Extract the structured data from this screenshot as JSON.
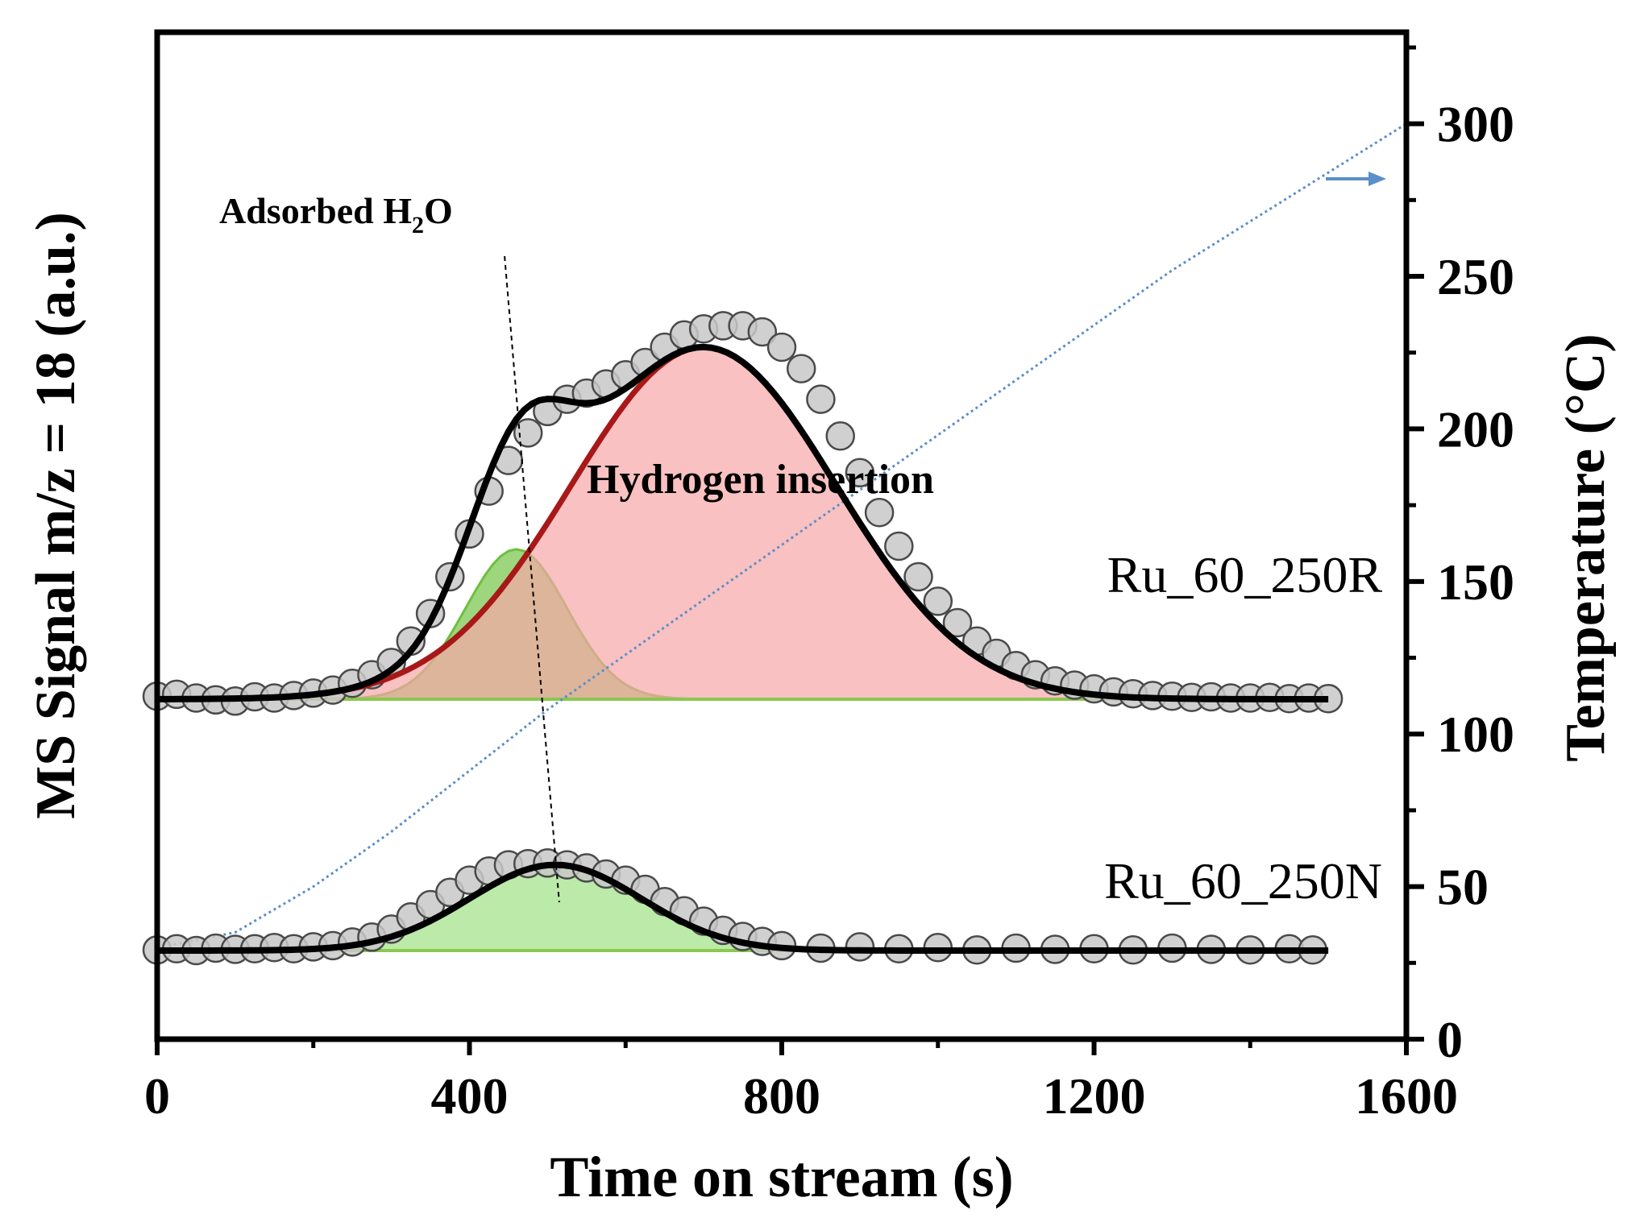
{
  "chart_data": {
    "type": "scatter",
    "xlabel": "Time on stream (s)",
    "ylabel": "MS Signal m/z = 18 (a.u.)",
    "y2label": "Temperature (°C)",
    "xlim": [
      0,
      1600
    ],
    "y2lim": [
      0,
      330
    ],
    "xticks": [
      0,
      400,
      800,
      1200,
      1600
    ],
    "y2ticks": [
      0,
      50,
      100,
      150,
      200,
      250,
      300
    ],
    "grid": false,
    "signal_units": "a.u. (offset stack, arbitrary vertical scale 0-100)",
    "annotations": {
      "adsorbed_prefix": "Adsorbed H",
      "adsorbed_sub": "2",
      "adsorbed_suffix": "O",
      "hydrogen_insertion": "Hydrogen insertion",
      "temperature_arrow": "→ Temperature axis"
    },
    "samples": [
      {
        "name": "Ru_60_250R",
        "baseline": 0,
        "data": [
          [
            0,
            0.5
          ],
          [
            25,
            0.8
          ],
          [
            50,
            0.2
          ],
          [
            75,
            -0.1
          ],
          [
            100,
            -0.3
          ],
          [
            125,
            0.4
          ],
          [
            150,
            0.2
          ],
          [
            175,
            0.6
          ],
          [
            200,
            1.0
          ],
          [
            225,
            1.5
          ],
          [
            250,
            2.6
          ],
          [
            275,
            4.0
          ],
          [
            300,
            6.0
          ],
          [
            325,
            9.5
          ],
          [
            350,
            14.0
          ],
          [
            375,
            20.0
          ],
          [
            400,
            27.0
          ],
          [
            425,
            34.0
          ],
          [
            450,
            39.0
          ],
          [
            475,
            43.5
          ],
          [
            500,
            47.0
          ],
          [
            525,
            49.0
          ],
          [
            550,
            50.0
          ],
          [
            575,
            51.5
          ],
          [
            600,
            53.0
          ],
          [
            625,
            55.0
          ],
          [
            650,
            57.5
          ],
          [
            675,
            59.5
          ],
          [
            700,
            60.5
          ],
          [
            725,
            61.0
          ],
          [
            750,
            61.0
          ],
          [
            775,
            60.0
          ],
          [
            800,
            57.5
          ],
          [
            825,
            54.0
          ],
          [
            850,
            49.0
          ],
          [
            875,
            43.0
          ],
          [
            900,
            37.0
          ],
          [
            925,
            30.5
          ],
          [
            950,
            25.0
          ],
          [
            975,
            20.0
          ],
          [
            1000,
            16.0
          ],
          [
            1025,
            12.5
          ],
          [
            1050,
            9.5
          ],
          [
            1075,
            7.5
          ],
          [
            1100,
            5.5
          ],
          [
            1125,
            4.0
          ],
          [
            1150,
            3.0
          ],
          [
            1175,
            2.3
          ],
          [
            1200,
            1.7
          ],
          [
            1225,
            1.2
          ],
          [
            1250,
            0.9
          ],
          [
            1275,
            0.6
          ],
          [
            1300,
            0.5
          ],
          [
            1325,
            0.3
          ],
          [
            1350,
            0.4
          ],
          [
            1375,
            0.2
          ],
          [
            1400,
            0.2
          ],
          [
            1425,
            0.3
          ],
          [
            1450,
            0.1
          ],
          [
            1475,
            0.2
          ],
          [
            1500,
            0.1
          ]
        ],
        "fit_peaks": [
          {
            "label": "Adsorbed H2O",
            "center": 460,
            "amplitude": 24.5,
            "sigma": 65,
            "color": "#7cc850"
          },
          {
            "label": "Hydrogen insertion",
            "center": 700,
            "amplitude": 57.5,
            "sigma": 170,
            "color": "#f7a6a6"
          }
        ]
      },
      {
        "name": "Ru_60_250N",
        "baseline": 0,
        "data": [
          [
            0,
            0.1
          ],
          [
            25,
            0.3
          ],
          [
            50,
            0.0
          ],
          [
            75,
            0.4
          ],
          [
            100,
            0.2
          ],
          [
            125,
            0.3
          ],
          [
            150,
            0.5
          ],
          [
            175,
            0.3
          ],
          [
            200,
            0.6
          ],
          [
            225,
            0.8
          ],
          [
            250,
            1.4
          ],
          [
            275,
            2.2
          ],
          [
            300,
            3.5
          ],
          [
            325,
            5.5
          ],
          [
            350,
            7.5
          ],
          [
            375,
            9.5
          ],
          [
            400,
            11.5
          ],
          [
            425,
            13.0
          ],
          [
            450,
            14.0
          ],
          [
            475,
            14.2
          ],
          [
            500,
            14.3
          ],
          [
            525,
            14.0
          ],
          [
            550,
            13.5
          ],
          [
            575,
            12.5
          ],
          [
            600,
            11.5
          ],
          [
            625,
            10.0
          ],
          [
            650,
            8.0
          ],
          [
            675,
            6.5
          ],
          [
            700,
            4.8
          ],
          [
            725,
            3.3
          ],
          [
            750,
            2.3
          ],
          [
            775,
            1.5
          ],
          [
            800,
            0.8
          ],
          [
            850,
            0.4
          ],
          [
            900,
            0.6
          ],
          [
            950,
            0.3
          ],
          [
            1000,
            0.5
          ],
          [
            1050,
            0.1
          ],
          [
            1100,
            0.4
          ],
          [
            1150,
            0.2
          ],
          [
            1200,
            0.3
          ],
          [
            1250,
            0.1
          ],
          [
            1300,
            0.4
          ],
          [
            1350,
            0.2
          ],
          [
            1400,
            0.1
          ],
          [
            1450,
            0.3
          ],
          [
            1480,
            0.1
          ]
        ],
        "fit_peaks": [
          {
            "label": "Adsorbed H2O",
            "center": 510,
            "amplitude": 14.0,
            "sigma": 110,
            "color": "#a6e38c"
          }
        ]
      }
    ],
    "temperature_series": {
      "name": "Temperature",
      "x": [
        0,
        100,
        200,
        300,
        400,
        500,
        600,
        700,
        800,
        900,
        1000,
        1100,
        1200,
        1300,
        1400,
        1500,
        1600
      ],
      "y": [
        30,
        35,
        50,
        68,
        88,
        108,
        126,
        144,
        162,
        180,
        198,
        216,
        234,
        252,
        268,
        284,
        300
      ]
    },
    "colors": {
      "data_marker": "#c8c8c8",
      "data_marker_edge": "#4a4a4a",
      "fit_total": "#000000",
      "insertion_line": "#a81818",
      "temperature": "#5b8fc8"
    }
  }
}
